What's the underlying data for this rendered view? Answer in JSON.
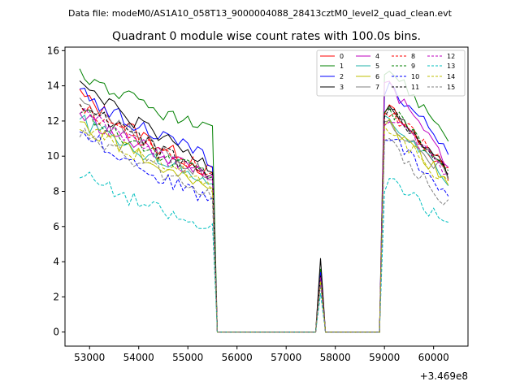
{
  "chart_data": {
    "type": "line",
    "suptitle": "Data file: modeM0/AS1A10_058T13_9000004088_28413cztM0_level2_quad_clean.evt",
    "title": "Quadrant 0 module wise count rates with 100.0s bins.",
    "xlabel": "",
    "ylabel": "",
    "x_offset_label": "+3.469e8",
    "xlim": [
      52500,
      60700
    ],
    "ylim": [
      -0.8,
      16.2
    ],
    "xticks": [
      53000,
      54000,
      55000,
      56000,
      57000,
      58000,
      59000,
      60000
    ],
    "yticks": [
      0,
      2,
      4,
      6,
      8,
      10,
      12,
      14,
      16
    ],
    "xtick_labels": [
      "53000",
      "54000",
      "55000",
      "56000",
      "57000",
      "58000",
      "59000",
      "60000"
    ],
    "ytick_labels": [
      "0",
      "2",
      "4",
      "6",
      "8",
      "10",
      "12",
      "14",
      "16"
    ],
    "legend_position": "top-right",
    "shape": {
      "seg1_start": 52800,
      "seg1_end": 55500,
      "drop_x": 55600,
      "spike_x": 57700,
      "spike_floor_left": 57600,
      "spike_floor_right": 57800,
      "seg2_floor_end": 58900,
      "seg2_start": 59000,
      "seg2_end": 60300,
      "bin": 100,
      "final_gap_x": 61000
    },
    "series": [
      {
        "name": "0",
        "color": "#ff0000",
        "dash": false,
        "start": 13.6,
        "end": 9.0,
        "peak": 13.0,
        "seg2_end": 9.0,
        "spike": 3.2
      },
      {
        "name": "1",
        "color": "#008000",
        "dash": false,
        "start": 14.8,
        "end": 11.3,
        "peak": 15.3,
        "seg2_end": 11.2,
        "spike": 3.6
      },
      {
        "name": "2",
        "color": "#0000ff",
        "dash": false,
        "start": 13.7,
        "end": 9.8,
        "peak": 14.2,
        "seg2_end": 10.4,
        "spike": 3.4
      },
      {
        "name": "3",
        "color": "#000000",
        "dash": false,
        "start": 14.2,
        "end": 9.4,
        "peak": 13.3,
        "seg2_end": 9.0,
        "spike": 4.2
      },
      {
        "name": "4",
        "color": "#bf00bf",
        "dash": false,
        "start": 12.4,
        "end": 8.9,
        "peak": 14.3,
        "seg2_end": 9.6,
        "spike": 3.1
      },
      {
        "name": "5",
        "color": "#20b2aa",
        "dash": false,
        "start": 12.1,
        "end": 8.6,
        "peak": 12.5,
        "seg2_end": 8.5,
        "spike": 3.0
      },
      {
        "name": "6",
        "color": "#bfbf00",
        "dash": false,
        "start": 12.0,
        "end": 8.3,
        "peak": 12.0,
        "seg2_end": 8.5,
        "spike": 2.9
      },
      {
        "name": "7",
        "color": "#808080",
        "dash": false,
        "start": 13.4,
        "end": 8.8,
        "peak": 12.3,
        "seg2_end": 8.8,
        "spike": 3.1
      },
      {
        "name": "8",
        "color": "#ff0000",
        "dash": true,
        "start": 13.1,
        "end": 9.0,
        "peak": 12.9,
        "seg2_end": 9.4,
        "spike": 3.2
      },
      {
        "name": "9",
        "color": "#008000",
        "dash": true,
        "start": 12.6,
        "end": 8.7,
        "peak": 13.0,
        "seg2_end": 9.2,
        "spike": 3.1
      },
      {
        "name": "10",
        "color": "#0000ff",
        "dash": true,
        "start": 11.6,
        "end": 7.4,
        "peak": 11.5,
        "seg2_end": 7.7,
        "spike": 2.8
      },
      {
        "name": "11",
        "color": "#000000",
        "dash": true,
        "start": 13.2,
        "end": 8.7,
        "peak": 12.9,
        "seg2_end": 8.8,
        "spike": 3.2
      },
      {
        "name": "12",
        "color": "#bf00bf",
        "dash": true,
        "start": 12.7,
        "end": 8.6,
        "peak": 12.5,
        "seg2_end": 8.9,
        "spike": 3.1
      },
      {
        "name": "13",
        "color": "#00bfbf",
        "dash": true,
        "start": 9.1,
        "end": 5.7,
        "peak": 8.8,
        "seg2_end": 6.1,
        "spike": 2.2
      },
      {
        "name": "14",
        "color": "#bfbf00",
        "dash": true,
        "start": 11.9,
        "end": 8.3,
        "peak": 11.8,
        "seg2_end": 8.4,
        "spike": 2.9
      },
      {
        "name": "15",
        "color": "#808080",
        "dash": true,
        "start": 11.5,
        "end": 7.8,
        "peak": 11.1,
        "seg2_end": 7.3,
        "spike": 2.7
      }
    ]
  }
}
